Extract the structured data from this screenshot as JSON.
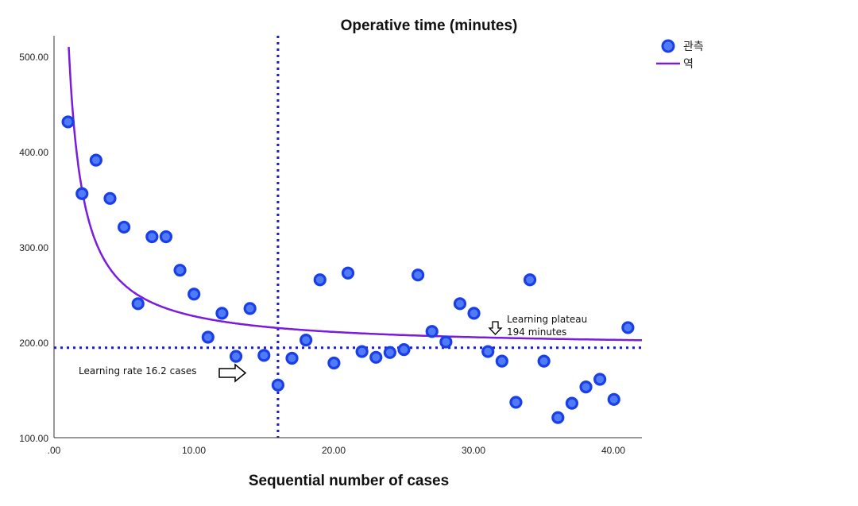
{
  "chart_data": {
    "type": "scatter",
    "title": "Operative time (minutes)",
    "xlabel": "Sequential number of cases",
    "ylabel": "",
    "xlim": [
      0,
      42
    ],
    "ylim": [
      100,
      520
    ],
    "x_ticks": [
      ".00",
      "10.00",
      "20.00",
      "30.00",
      "40.00"
    ],
    "y_ticks": [
      "100.00",
      "200.00",
      "300.00",
      "400.00",
      "500.00"
    ],
    "grid": false,
    "legend_position": "top-right",
    "colors": {
      "observed": "#1a3fe8",
      "fit": "#7a1be0",
      "reference": "#1a1ad0"
    },
    "series": [
      {
        "name": "관측",
        "kind": "scatter",
        "x": [
          1,
          2,
          3,
          4,
          5,
          6,
          7,
          8,
          9,
          10,
          11,
          12,
          13,
          14,
          15,
          16,
          17,
          18,
          19,
          20,
          21,
          22,
          23,
          24,
          25,
          26,
          27,
          28,
          29,
          30,
          31,
          32,
          33,
          34,
          35,
          36,
          37,
          38,
          39,
          40,
          41
        ],
        "y": [
          430,
          355,
          390,
          350,
          320,
          240,
          310,
          310,
          275,
          250,
          205,
          230,
          185,
          235,
          186,
          155,
          183,
          202,
          265,
          178,
          272,
          190,
          184,
          189,
          192,
          270,
          211,
          200,
          240,
          230,
          190,
          180,
          137,
          265,
          180,
          121,
          136,
          153,
          161,
          140,
          215
        ]
      },
      {
        "name": "역",
        "kind": "line",
        "model": "inverse",
        "b0": 194,
        "b1": 330
      }
    ],
    "reference_lines": [
      {
        "orientation": "horizontal",
        "value": 194
      },
      {
        "orientation": "vertical",
        "value": 16
      }
    ],
    "annotations": [
      {
        "text_lines": [
          "Learning plateau",
          "194 minutes"
        ],
        "arrow": "down"
      },
      {
        "text_lines": [
          "Learning rate 16.2 cases"
        ],
        "arrow": "right"
      }
    ]
  }
}
